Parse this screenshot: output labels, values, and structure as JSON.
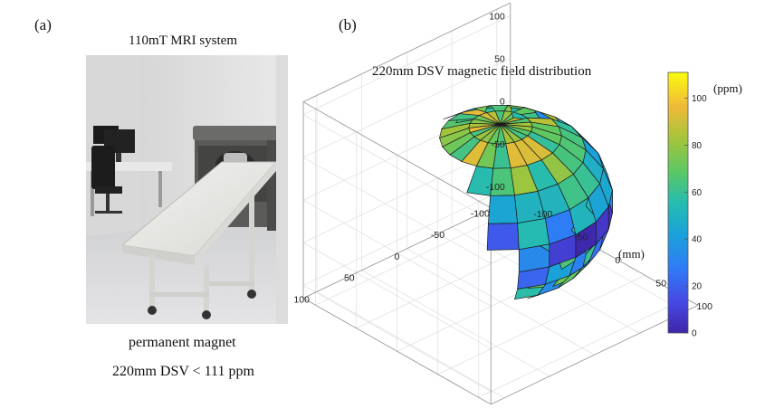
{
  "panel_a": {
    "label": "(a)",
    "title": "110mT MRI system",
    "caption_line1": "permanent magnet",
    "caption_line2": "220mm DSV < 111 ppm"
  },
  "panel_b": {
    "label": "(b)",
    "title": "220mm DSV magnetic field distribution",
    "unit_mm": "(mm)",
    "unit_ppm": "(ppm)"
  },
  "chart_data": {
    "type": "heatmap",
    "title": "220mm DSV magnetic field distribution",
    "z_ticks": [
      100,
      50,
      0,
      -50,
      -100
    ],
    "x_ticks": [
      100,
      50,
      0,
      -50,
      -100
    ],
    "y_ticks": [
      100,
      50,
      0,
      -50,
      -100
    ],
    "colorbar": {
      "ticks": [
        100,
        80,
        60,
        40,
        20,
        0
      ],
      "range": [
        0,
        111
      ],
      "unit": "(ppm)",
      "colormap": "parula"
    },
    "axis_unit": "(mm)"
  },
  "colors": {
    "parula_low": "#3e26a8",
    "parula_mid": "#26bcb0",
    "parula_high": "#f9fb0e"
  }
}
